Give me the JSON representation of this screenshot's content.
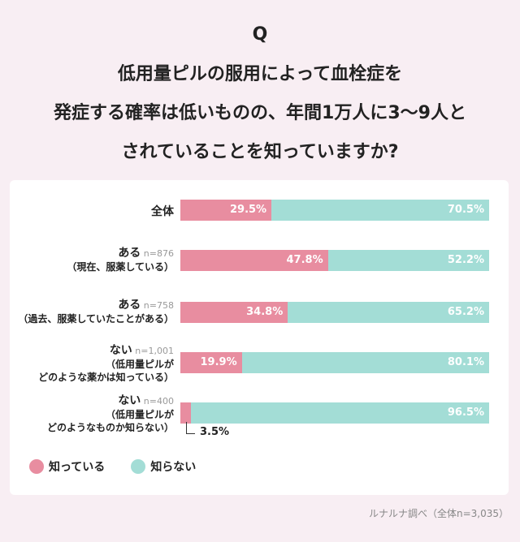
{
  "q_mark": "Q",
  "question_lines": [
    "低用量ピルの服用によって血栓症を",
    "発症する確率は低いものの、年間1万人に3〜9人と",
    "されていることを知っていますか?"
  ],
  "colors": {
    "known": "#e88da0",
    "unknown": "#a3ddd6",
    "background": "#f8eef3"
  },
  "chart_data": {
    "type": "bar",
    "orientation": "horizontal-stacked-100",
    "categories": [
      {
        "main": "全体",
        "n": "",
        "sub": []
      },
      {
        "main": "ある",
        "n": "n=876",
        "sub": [
          "（現在、服薬している）"
        ]
      },
      {
        "main": "ある",
        "n": "n=758",
        "sub": [
          "（過去、服薬していたことがある）"
        ]
      },
      {
        "main": "ない",
        "n": "n=1,001",
        "sub": [
          "（低用量ピルが",
          "どのような薬かは知っている）"
        ]
      },
      {
        "main": "ない",
        "n": "n=400",
        "sub": [
          "（低用量ピルが",
          "どのようなものか知らない）"
        ]
      }
    ],
    "series": [
      {
        "name": "知っている",
        "values": [
          29.5,
          47.8,
          34.8,
          19.9,
          3.5
        ],
        "labels": [
          "29.5%",
          "47.8%",
          "34.8%",
          "19.9%",
          ""
        ]
      },
      {
        "name": "知らない",
        "values": [
          70.5,
          52.2,
          65.2,
          80.1,
          96.5
        ],
        "labels": [
          "70.5%",
          "52.2%",
          "65.2%",
          "80.1%",
          "96.5%"
        ]
      }
    ],
    "annotation": "3.5%",
    "legend_position": "bottom-left",
    "source": "ルナルナ調べ（全体n=3,035）"
  }
}
